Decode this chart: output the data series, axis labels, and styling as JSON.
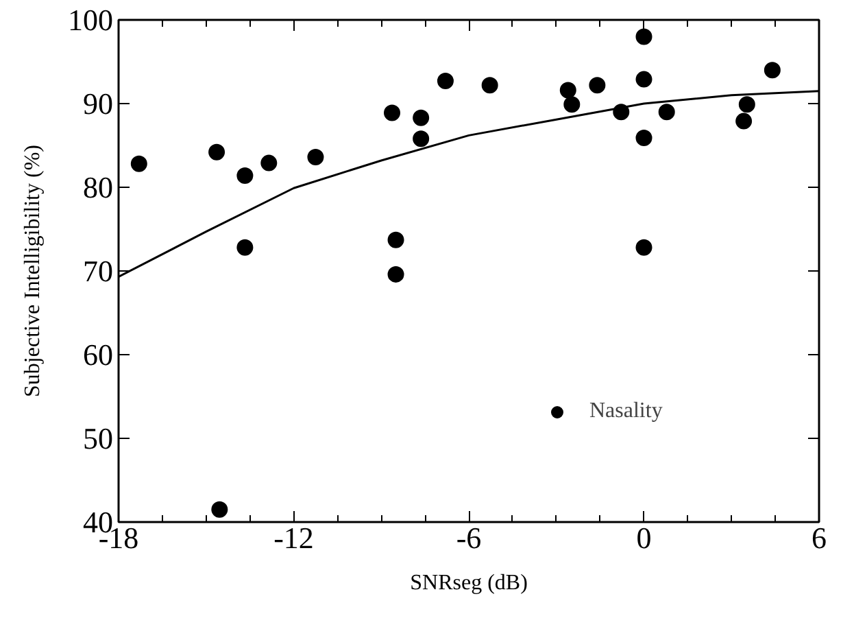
{
  "chart_data": {
    "type": "scatter",
    "xlabel": "SNRseg (dB)",
    "ylabel": "Subjective Intelligibility (%)",
    "xlim": [
      -18,
      6
    ],
    "xticks": [
      {
        "value": -18,
        "label": "-18"
      },
      {
        "value": -12,
        "label": "-12"
      },
      {
        "value": -6,
        "label": "-6"
      },
      0,
      6
    ],
    "ylim": [
      40,
      100
    ],
    "yticks": [
      40,
      50,
      60,
      70,
      80,
      90,
      100
    ],
    "grid": false,
    "legend": "bottom right",
    "marker": "circle",
    "series": [
      {
        "name": "Nasality",
        "color": "#000000",
        "x": [
          -17.3,
          -14.64,
          -13.67,
          -13.67,
          -12.85,
          -11.25,
          -14.54,
          -8.63,
          -8.5,
          -8.5,
          -7.64,
          -7.64,
          -6.8,
          -5.28,
          -2.6,
          -2.47,
          -1.6,
          -0.78,
          0,
          0,
          0,
          0,
          0.78,
          3.42,
          3.53,
          4.4
        ],
        "values": [
          82.8,
          84.2,
          81.4,
          72.8,
          82.9,
          83.6,
          41.5,
          88.9,
          73.7,
          69.6,
          88.3,
          85.8,
          92.7,
          92.2,
          91.6,
          89.9,
          92.2,
          89.0,
          98.0,
          92.9,
          85.9,
          72.8,
          89.0,
          87.9,
          89.9,
          94.0
        ]
      },
      {
        "color": "#000000",
        "type": "line",
        "marker": "none",
        "line_style": "solid",
        "x": [
          -18,
          -15,
          -12,
          -9,
          -6,
          -3,
          0,
          3,
          6
        ],
        "values": [
          69.3,
          74.7,
          79.9,
          83.2,
          86.2,
          88.1,
          90.0,
          91.0,
          91.5
        ]
      }
    ]
  }
}
